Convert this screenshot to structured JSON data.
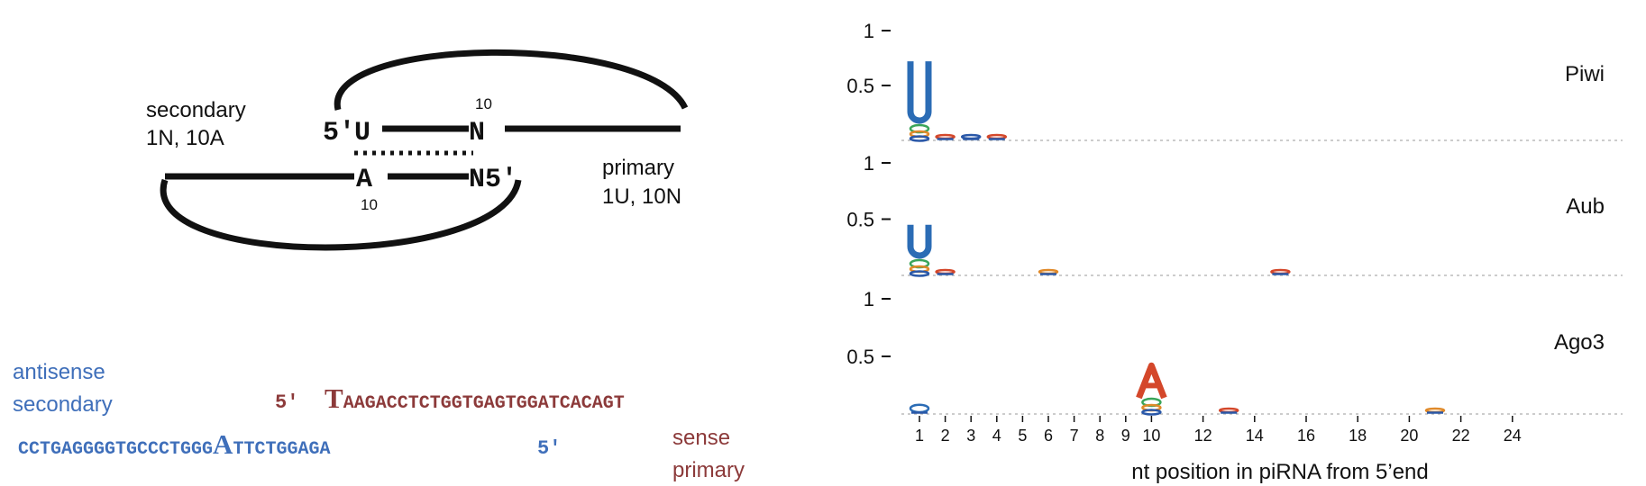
{
  "colors": {
    "ink": "#111111",
    "secondary_blue": "#3f6fba",
    "primary_red": "#8c3a3a",
    "logo_U": "#2b6cb5",
    "logo_A": "#d4472a",
    "logo_C": "#2a58a8",
    "logo_G": "#e08a2a",
    "logo_green": "#3aa55a"
  },
  "pingpong": {
    "secondary_label": [
      "secondary",
      "1N, 10A"
    ],
    "primary_label": [
      "primary",
      "1U, 10N"
    ],
    "top_strand": {
      "five_prime": "5′",
      "pos1": "U",
      "pos10": "N",
      "pos10_number": "10"
    },
    "bottom_strand": {
      "pos10": "A",
      "pos10_number": "10",
      "pos1_five_prime": "N5′"
    }
  },
  "sequences": {
    "antisense_label": [
      "antisense",
      "secondary"
    ],
    "sense_label": [
      "sense",
      "primary"
    ],
    "sense_five_prime": "5′",
    "sense_first": "T",
    "sense_rest": "AAGACCTCTGGTGAGTGGATCACAGT",
    "antisense_left": "CCTGAGGGGTGCCCTGGG",
    "antisense_highlight": "A",
    "antisense_right": "TTCTGGAGA",
    "antisense_five_prime": "5′"
  },
  "chart_data": {
    "type": "sequence-logo",
    "x_label": "nt position in piRNA from 5’end",
    "x_tick_labels": [
      "1",
      "2",
      "3",
      "4",
      "5",
      "6",
      "7",
      "8",
      "9",
      "10",
      "12",
      "14",
      "16",
      "18",
      "20",
      "22",
      "24"
    ],
    "y_tick_labels": [
      "1",
      "0.5"
    ],
    "y_range": [
      0,
      1
    ],
    "panels": [
      {
        "name": "Piwi",
        "peaks": [
          {
            "position": 1,
            "base": "U",
            "height": 0.72
          },
          {
            "position": 2,
            "base": "A",
            "height": 0.03
          },
          {
            "position": 3,
            "base": "C",
            "height": 0.02
          },
          {
            "position": 4,
            "base": "A",
            "height": 0.015
          }
        ]
      },
      {
        "name": "Aub",
        "peaks": [
          {
            "position": 1,
            "base": "U",
            "height": 0.45
          },
          {
            "position": 2,
            "base": "A",
            "height": 0.03
          },
          {
            "position": 6,
            "base": "G",
            "height": 0.03
          },
          {
            "position": 15,
            "base": "A",
            "height": 0.02
          }
        ]
      },
      {
        "name": "Ago3",
        "peaks": [
          {
            "position": 1,
            "base": "U",
            "height": 0.08
          },
          {
            "position": 10,
            "base": "A",
            "height": 0.42
          },
          {
            "position": 13,
            "base": "A",
            "height": 0.01
          },
          {
            "position": 21,
            "base": "G",
            "height": 0.01
          }
        ]
      }
    ]
  }
}
